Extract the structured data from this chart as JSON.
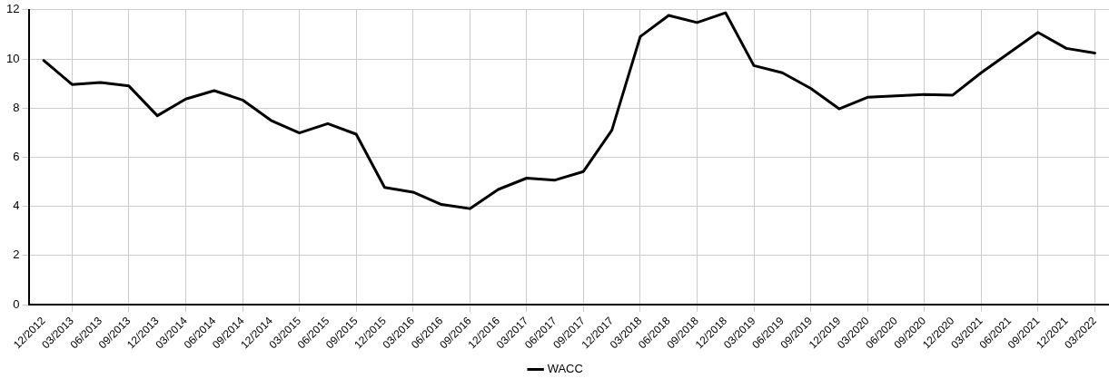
{
  "chart_data": {
    "type": "line",
    "categories": [
      "12/2012",
      "03/2013",
      "06/2013",
      "09/2013",
      "12/2013",
      "03/2014",
      "06/2014",
      "09/2014",
      "12/2014",
      "03/2015",
      "06/2015",
      "09/2015",
      "12/2015",
      "03/2016",
      "06/2016",
      "09/2016",
      "12/2016",
      "03/2017",
      "06/2017",
      "09/2017",
      "12/2017",
      "03/2018",
      "06/2018",
      "09/2018",
      "12/2018",
      "03/2019",
      "06/2019",
      "09/2019",
      "12/2019",
      "03/2020",
      "06/2020",
      "09/2020",
      "12/2020",
      "03/2021",
      "06/2021",
      "09/2021",
      "12/2021",
      "03/2022"
    ],
    "series": [
      {
        "name": "WACC",
        "color": "#000000",
        "values": [
          9.94,
          8.96,
          9.04,
          8.9,
          7.69,
          8.37,
          8.71,
          8.33,
          7.5,
          6.99,
          7.37,
          6.94,
          4.77,
          4.58,
          4.08,
          3.91,
          4.69,
          5.15,
          5.07,
          5.42,
          7.1,
          10.91,
          11.77,
          11.48,
          11.88,
          9.73,
          9.44,
          8.8,
          7.97,
          8.44,
          8.5,
          8.55,
          8.53,
          9.44,
          10.26,
          11.08,
          10.43,
          10.24
        ]
      }
    ],
    "ylim": [
      0,
      12
    ],
    "yticks": [
      0,
      2,
      4,
      6,
      8,
      10,
      12
    ],
    "grid": true,
    "legend": "bottom",
    "marker": "none",
    "line_style": "solid"
  }
}
